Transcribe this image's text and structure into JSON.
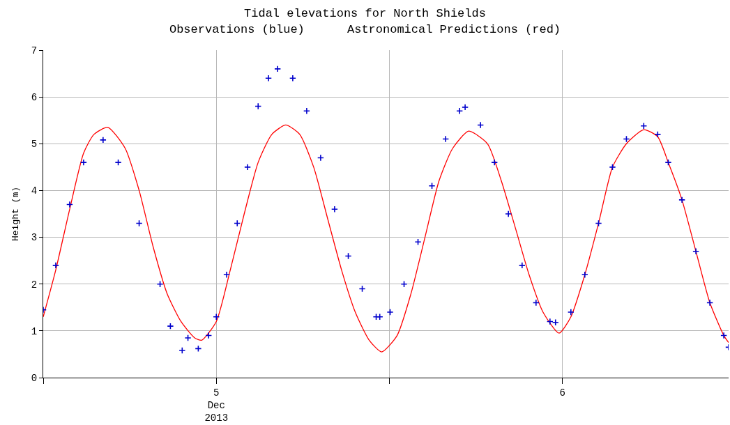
{
  "chart_data": {
    "type": "line",
    "title": "Tidal elevations for North Shields",
    "subtitle": "Observations (blue)      Astronomical Predictions (red)",
    "ylabel": "Height (m)",
    "ylim": [
      0,
      7
    ],
    "yticks": [
      0,
      1,
      2,
      3,
      4,
      5,
      6,
      7
    ],
    "xlim": [
      "2013-12-04T12:00",
      "2013-12-06T11:31"
    ],
    "xticks": [
      {
        "value": "2013-12-04T12:00",
        "label": null
      },
      {
        "value": "2013-12-05T00:00",
        "label": "5\nDec\n2013"
      },
      {
        "value": "2013-12-05T12:00",
        "label": null
      },
      {
        "value": "2013-12-06T00:00",
        "label": "6"
      }
    ],
    "grid": true,
    "series": [
      {
        "type": "scatter",
        "marker": "cross",
        "color": "#0000cc",
        "x": [
          "2013-12-04T12:00",
          "2013-12-04T12:52",
          "2013-12-04T13:50",
          "2013-12-04T14:48",
          "2013-12-04T16:09",
          "2013-12-04T17:12",
          "2013-12-04T18:39",
          "2013-12-04T20:06",
          "2013-12-04T20:49",
          "2013-12-04T21:38",
          "2013-12-04T22:02",
          "2013-12-04T22:45",
          "2013-12-04T23:28",
          "2013-12-05T00:00",
          "2013-12-05T00:43",
          "2013-12-05T01:27",
          "2013-12-05T02:10",
          "2013-12-05T02:54",
          "2013-12-05T03:37",
          "2013-12-05T04:15",
          "2013-12-05T05:18",
          "2013-12-05T06:16",
          "2013-12-05T07:14",
          "2013-12-05T08:12",
          "2013-12-05T09:09",
          "2013-12-05T10:07",
          "2013-12-05T11:05",
          "2013-12-05T11:20",
          "2013-12-05T12:03",
          "2013-12-05T13:01",
          "2013-12-05T13:59",
          "2013-12-05T14:57",
          "2013-12-05T15:54",
          "2013-12-05T16:52",
          "2013-12-05T17:15",
          "2013-12-05T18:19",
          "2013-12-05T19:17",
          "2013-12-05T20:15",
          "2013-12-05T21:12",
          "2013-12-05T22:10",
          "2013-12-05T23:08",
          "2013-12-05T23:31",
          "2013-12-06T00:35",
          "2013-12-06T01:33",
          "2013-12-06T02:30",
          "2013-12-06T03:28",
          "2013-12-06T04:26",
          "2013-12-06T05:38",
          "2013-12-06T06:36",
          "2013-12-06T07:20",
          "2013-12-06T08:17",
          "2013-12-06T09:15",
          "2013-12-06T10:13",
          "2013-12-06T11:11",
          "2013-12-06T11:31"
        ],
        "values": [
          1.45,
          2.4,
          3.7,
          4.6,
          5.08,
          4.6,
          3.3,
          2.0,
          1.1,
          0.58,
          0.85,
          0.62,
          0.9,
          1.3,
          2.2,
          3.3,
          4.5,
          5.8,
          6.4,
          6.6,
          6.4,
          5.7,
          4.7,
          3.6,
          2.6,
          1.9,
          1.3,
          1.3,
          1.4,
          2.0,
          2.9,
          4.1,
          5.1,
          5.7,
          5.78,
          5.4,
          4.6,
          3.5,
          2.4,
          1.6,
          1.2,
          1.18,
          1.4,
          2.2,
          3.3,
          4.5,
          5.1,
          5.38,
          5.2,
          4.6,
          3.8,
          2.7,
          1.6,
          0.9,
          0.65
        ]
      },
      {
        "marker": "none",
        "line_style": "solid",
        "color": "#ff0000",
        "x": [
          "2013-12-04T12:00",
          "2013-12-04T12:52",
          "2013-12-04T13:50",
          "2013-12-04T14:48",
          "2013-12-04T15:31",
          "2013-12-04T16:29",
          "2013-12-04T17:41",
          "2013-12-04T18:39",
          "2013-12-04T19:37",
          "2013-12-04T20:35",
          "2013-12-04T21:33",
          "2013-12-04T22:30",
          "2013-12-04T22:59",
          "2013-12-05T00:00",
          "2013-12-05T00:58",
          "2013-12-05T01:56",
          "2013-12-05T02:54",
          "2013-12-05T03:51",
          "2013-12-05T04:49",
          "2013-12-05T05:47",
          "2013-12-05T06:45",
          "2013-12-05T07:43",
          "2013-12-05T08:41",
          "2013-12-05T09:38",
          "2013-12-05T10:36",
          "2013-12-05T11:28",
          "2013-12-05T12:32",
          "2013-12-05T13:30",
          "2013-12-05T14:28",
          "2013-12-05T15:26",
          "2013-12-05T16:23",
          "2013-12-05T17:30",
          "2013-12-05T18:48",
          "2013-12-05T19:46",
          "2013-12-05T20:44",
          "2013-12-05T21:41",
          "2013-12-05T22:39",
          "2013-12-05T23:46",
          "2013-12-06T00:35",
          "2013-12-06T01:33",
          "2013-12-06T02:30",
          "2013-12-06T03:28",
          "2013-12-06T04:26",
          "2013-12-06T05:38",
          "2013-12-06T06:36",
          "2013-12-06T07:20",
          "2013-12-06T08:17",
          "2013-12-06T09:15",
          "2013-12-06T10:13",
          "2013-12-06T11:11",
          "2013-12-06T11:31"
        ],
        "values": [
          1.3,
          2.3,
          3.6,
          4.8,
          5.2,
          5.35,
          4.9,
          4.0,
          2.8,
          1.8,
          1.2,
          0.85,
          0.8,
          1.2,
          2.3,
          3.5,
          4.6,
          5.2,
          5.4,
          5.2,
          4.5,
          3.4,
          2.3,
          1.4,
          0.8,
          0.55,
          0.9,
          1.8,
          3.0,
          4.2,
          4.9,
          5.27,
          5.0,
          4.2,
          3.2,
          2.2,
          1.4,
          0.95,
          1.3,
          2.2,
          3.3,
          4.5,
          5.0,
          5.3,
          5.15,
          4.6,
          3.8,
          2.7,
          1.6,
          0.9,
          0.75
        ]
      }
    ]
  }
}
